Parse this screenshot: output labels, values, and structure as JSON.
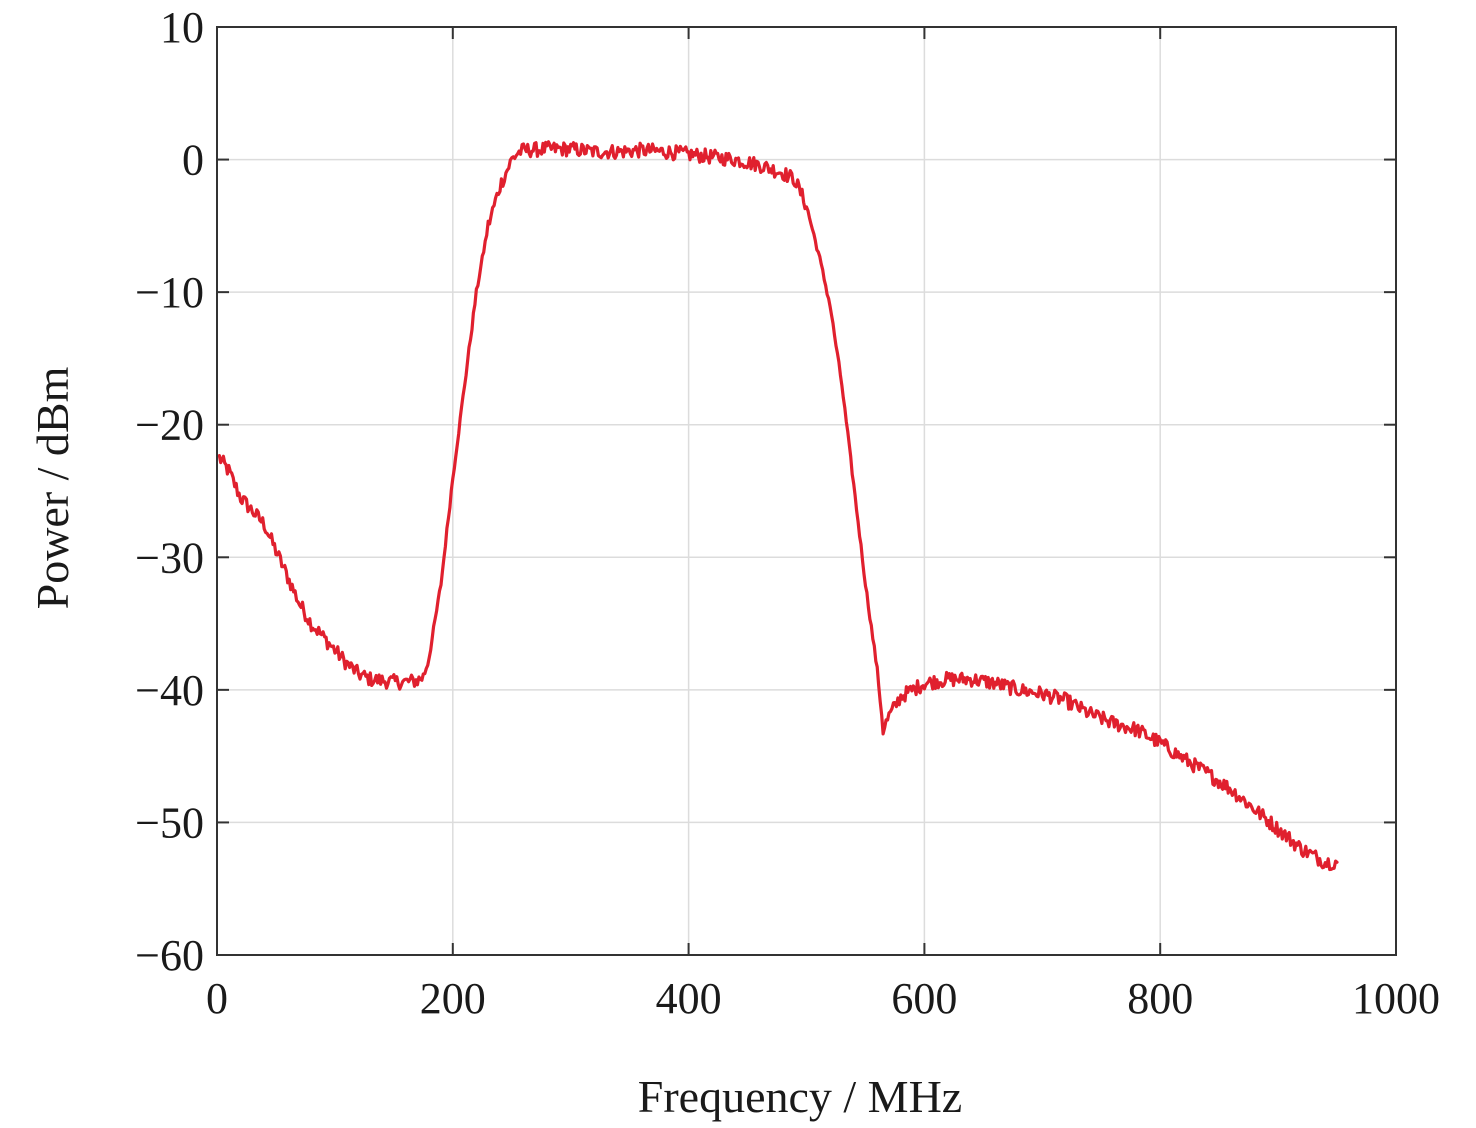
{
  "chart_data": {
    "type": "line",
    "title": "",
    "xlabel": "Frequency / MHz",
    "ylabel": "Power / dBm",
    "xlim": [
      0,
      1000
    ],
    "ylim": [
      -60,
      10
    ],
    "xticks": [
      0,
      200,
      400,
      600,
      800,
      1000
    ],
    "yticks": [
      10,
      0,
      -10,
      -20,
      -30,
      -40,
      -50,
      -60
    ],
    "xtick_labels": [
      "0",
      "200",
      "400",
      "600",
      "800",
      "1000"
    ],
    "ytick_labels": [
      "10",
      "0",
      "−10",
      "−20",
      "−30",
      "−40",
      "−50",
      "−60"
    ],
    "grid": true,
    "legend": "none",
    "series": [
      {
        "color": "#e0202e",
        "x": [
          2,
          10,
          20,
          30,
          40,
          50,
          60,
          70,
          80,
          90,
          100,
          110,
          120,
          130,
          140,
          150,
          160,
          170,
          175,
          180,
          190,
          200,
          210,
          220,
          230,
          240,
          250,
          255,
          260,
          280,
          300,
          320,
          340,
          360,
          380,
          400,
          420,
          440,
          460,
          480,
          490,
          500,
          510,
          520,
          530,
          540,
          550,
          560,
          565,
          570,
          580,
          600,
          620,
          640,
          660,
          680,
          700,
          720,
          740,
          760,
          780,
          800,
          820,
          840,
          860,
          880,
          900,
          920,
          940,
          950
        ],
        "y": [
          -22.5,
          -23.5,
          -25.5,
          -26.5,
          -27.5,
          -29.5,
          -31.5,
          -33.5,
          -35.0,
          -36.0,
          -37.0,
          -38.0,
          -38.8,
          -39.2,
          -39.3,
          -39.4,
          -39.4,
          -39.3,
          -39.0,
          -37.5,
          -32.0,
          -24.0,
          -17.0,
          -10.0,
          -5.0,
          -2.0,
          0.0,
          0.5,
          0.7,
          0.8,
          0.8,
          0.6,
          0.6,
          0.7,
          0.6,
          0.4,
          0.2,
          0.0,
          -0.4,
          -1.0,
          -1.5,
          -3.5,
          -7.0,
          -11.0,
          -17.0,
          -24.5,
          -32.0,
          -38.5,
          -43.0,
          -42.0,
          -40.5,
          -39.5,
          -39.2,
          -39.2,
          -39.5,
          -40.0,
          -40.3,
          -40.8,
          -41.8,
          -42.5,
          -43.0,
          -44.0,
          -45.2,
          -46.3,
          -47.5,
          -49.0,
          -50.5,
          -52.0,
          -53.0,
          -53.0
        ]
      }
    ]
  }
}
